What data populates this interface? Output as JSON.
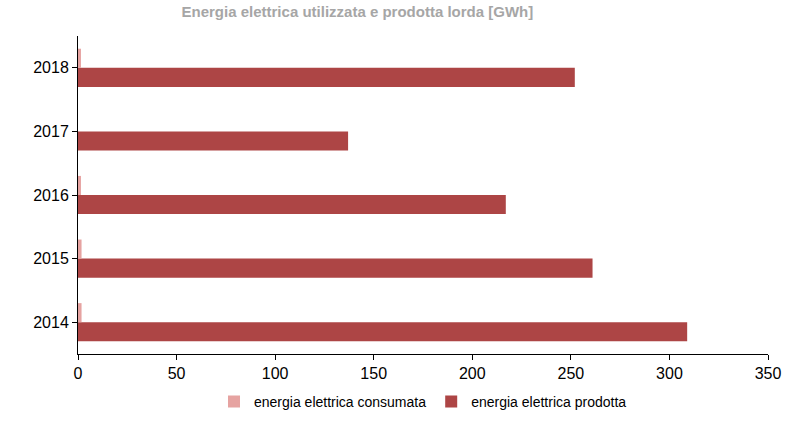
{
  "chart_data": {
    "type": "bar",
    "orientation": "horizontal",
    "title": "Energia elettrica utilizzata e prodotta lorda [GWh]",
    "categories": [
      "2014",
      "2015",
      "2016",
      "2017",
      "2018"
    ],
    "series": [
      {
        "name": "energia elettrica consumata",
        "color": "#e6a3a1",
        "values": [
          1.8,
          1.8,
          1.5,
          0,
          1.5
        ]
      },
      {
        "name": "energia elettrica prodotta",
        "color": "#ad4545",
        "values": [
          309,
          261,
          217,
          137,
          252
        ]
      }
    ],
    "xlim": [
      0,
      350
    ],
    "xticks": [
      0,
      50,
      100,
      150,
      200,
      250,
      300,
      350
    ],
    "grid": false,
    "legend": "bottom"
  }
}
